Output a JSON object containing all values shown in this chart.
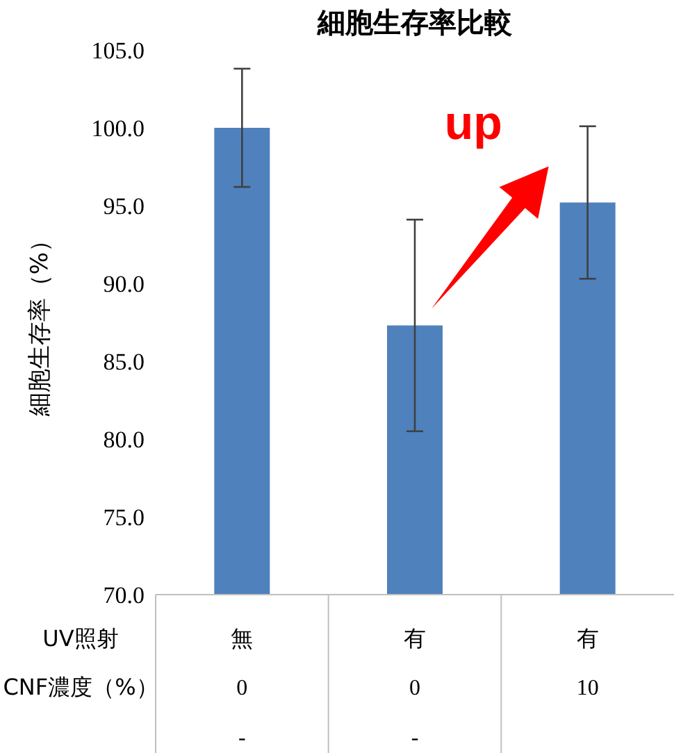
{
  "chart_data": {
    "type": "bar",
    "title": "細胞生存率比較",
    "ylabel": "細胞生存率（%）",
    "categories": [
      "無",
      "有",
      "有"
    ],
    "values": [
      100.0,
      87.3,
      95.2
    ],
    "errors": [
      3.8,
      6.8,
      4.9
    ],
    "color": "#4f81bd",
    "ylim": [
      70,
      105
    ],
    "yticks": [
      {
        "value": 70,
        "label": "70.0"
      },
      {
        "value": 75,
        "label": "75.0"
      },
      {
        "value": 80,
        "label": "80.0"
      },
      {
        "value": 85,
        "label": "85.0"
      },
      {
        "value": 90,
        "label": "90.0"
      },
      {
        "value": 95,
        "label": "95.0"
      },
      {
        "value": 100,
        "label": "100.0"
      },
      {
        "value": 105,
        "label": "105.0"
      }
    ],
    "grid": false,
    "annotations": [
      "up",
      "UV照射",
      "CNF濃度（%）",
      "0",
      "0",
      "10",
      "-",
      "-"
    ]
  }
}
